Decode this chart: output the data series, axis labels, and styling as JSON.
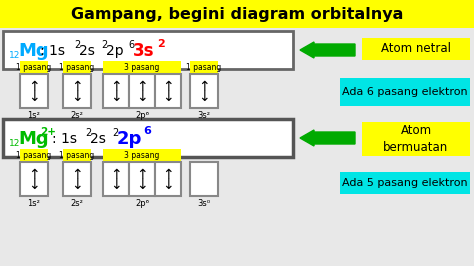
{
  "title": "Gampang, begini diagram orbitalnya",
  "title_bg": "#FFFF00",
  "bg_color": "#C8C8C8",
  "white": "#FFFFFF",
  "box_edge": "#888888",
  "pasang_bg": "#FFFF00",
  "cyan_bg": "#00E5E5",
  "arrow_color": "#00AA00",
  "label1": "Atom netral",
  "label2": "Ada 6 pasang elektron",
  "label3": "Atom\nbermuatan",
  "label4": "Ada 5 pasang elektron",
  "s1_color": "#00AAFF",
  "s2_color": "#FF0000",
  "s3_color": "#00BB00",
  "s4_color": "#0000FF",
  "figw": 4.74,
  "figh": 2.66,
  "dpi": 100
}
